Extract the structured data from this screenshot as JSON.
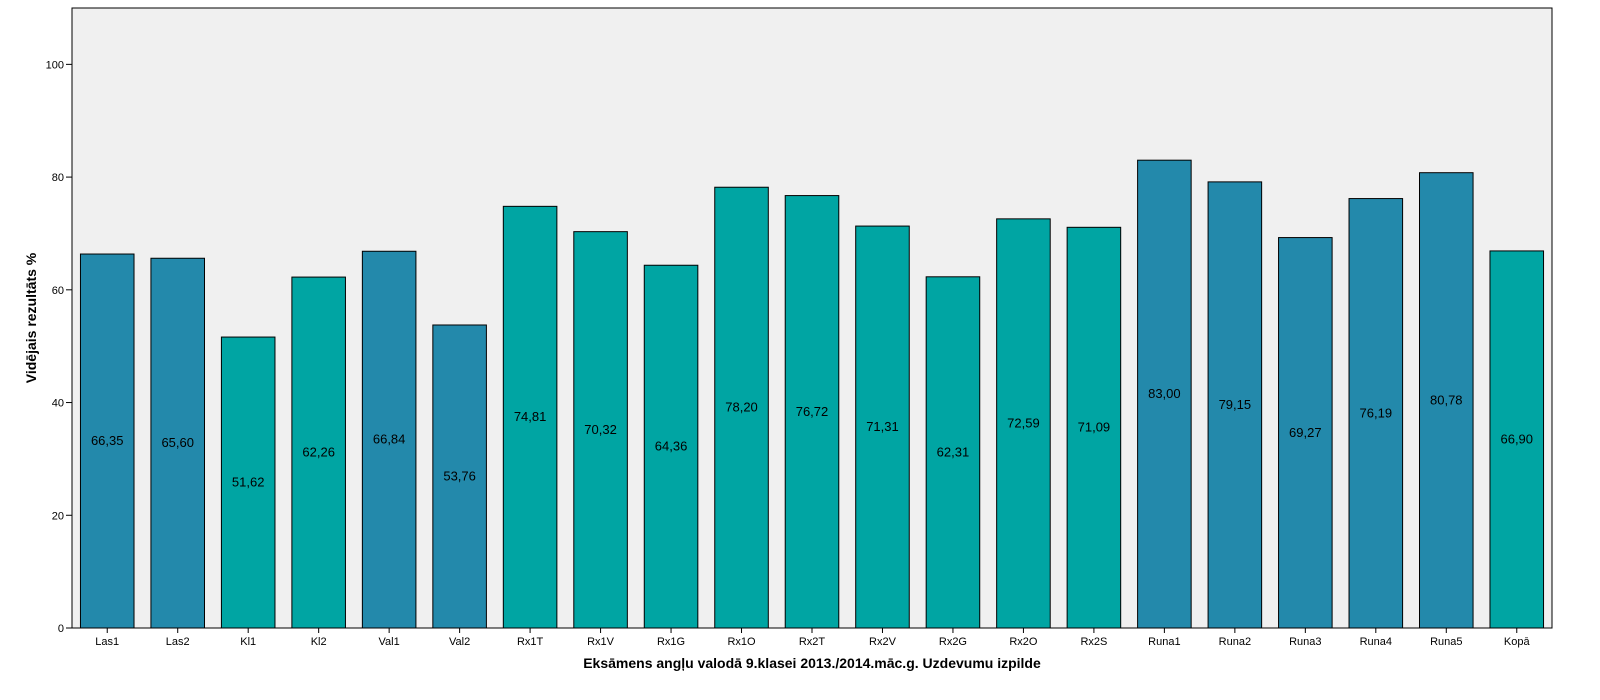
{
  "colors": {
    "plot_background": "#f0f0f0",
    "blue": "#2389ab",
    "teal": "#00a5a3",
    "bar_outline": "#000000"
  },
  "chart_data": {
    "type": "bar",
    "title": "",
    "xlabel": "Eksāmens angļu valodā 9.klasei 2013./2014.māc.g. Uzdevumu izpilde",
    "ylabel": "Vidējais rezultāts %",
    "ylim": [
      0,
      110
    ],
    "yticks": [
      0,
      20,
      40,
      60,
      80,
      100
    ],
    "grid": false,
    "legend": "none",
    "categories": [
      "Las1",
      "Las2",
      "Kl1",
      "Kl2",
      "Val1",
      "Val2",
      "Rx1T",
      "Rx1V",
      "Rx1G",
      "Rx1O",
      "Rx2T",
      "Rx2V",
      "Rx2G",
      "Rx2O",
      "Rx2S",
      "Runa1",
      "Runa2",
      "Runa3",
      "Runa4",
      "Runa5",
      "Kopā"
    ],
    "values": [
      66.35,
      65.6,
      51.62,
      62.26,
      66.84,
      53.76,
      74.81,
      70.32,
      64.36,
      78.2,
      76.72,
      71.31,
      62.31,
      72.59,
      71.09,
      83.0,
      79.15,
      69.27,
      76.19,
      80.78,
      66.9
    ],
    "value_labels": [
      "66,35",
      "65,60",
      "51,62",
      "62,26",
      "66,84",
      "53,76",
      "74,81",
      "70,32",
      "64,36",
      "78,20",
      "76,72",
      "71,31",
      "62,31",
      "72,59",
      "71,09",
      "83,00",
      "79,15",
      "69,27",
      "76,19",
      "80,78",
      "66,90"
    ],
    "bar_colors": [
      "blue",
      "blue",
      "teal",
      "teal",
      "blue",
      "blue",
      "teal",
      "teal",
      "teal",
      "teal",
      "teal",
      "teal",
      "teal",
      "teal",
      "teal",
      "blue",
      "blue",
      "blue",
      "blue",
      "blue",
      "teal"
    ]
  }
}
